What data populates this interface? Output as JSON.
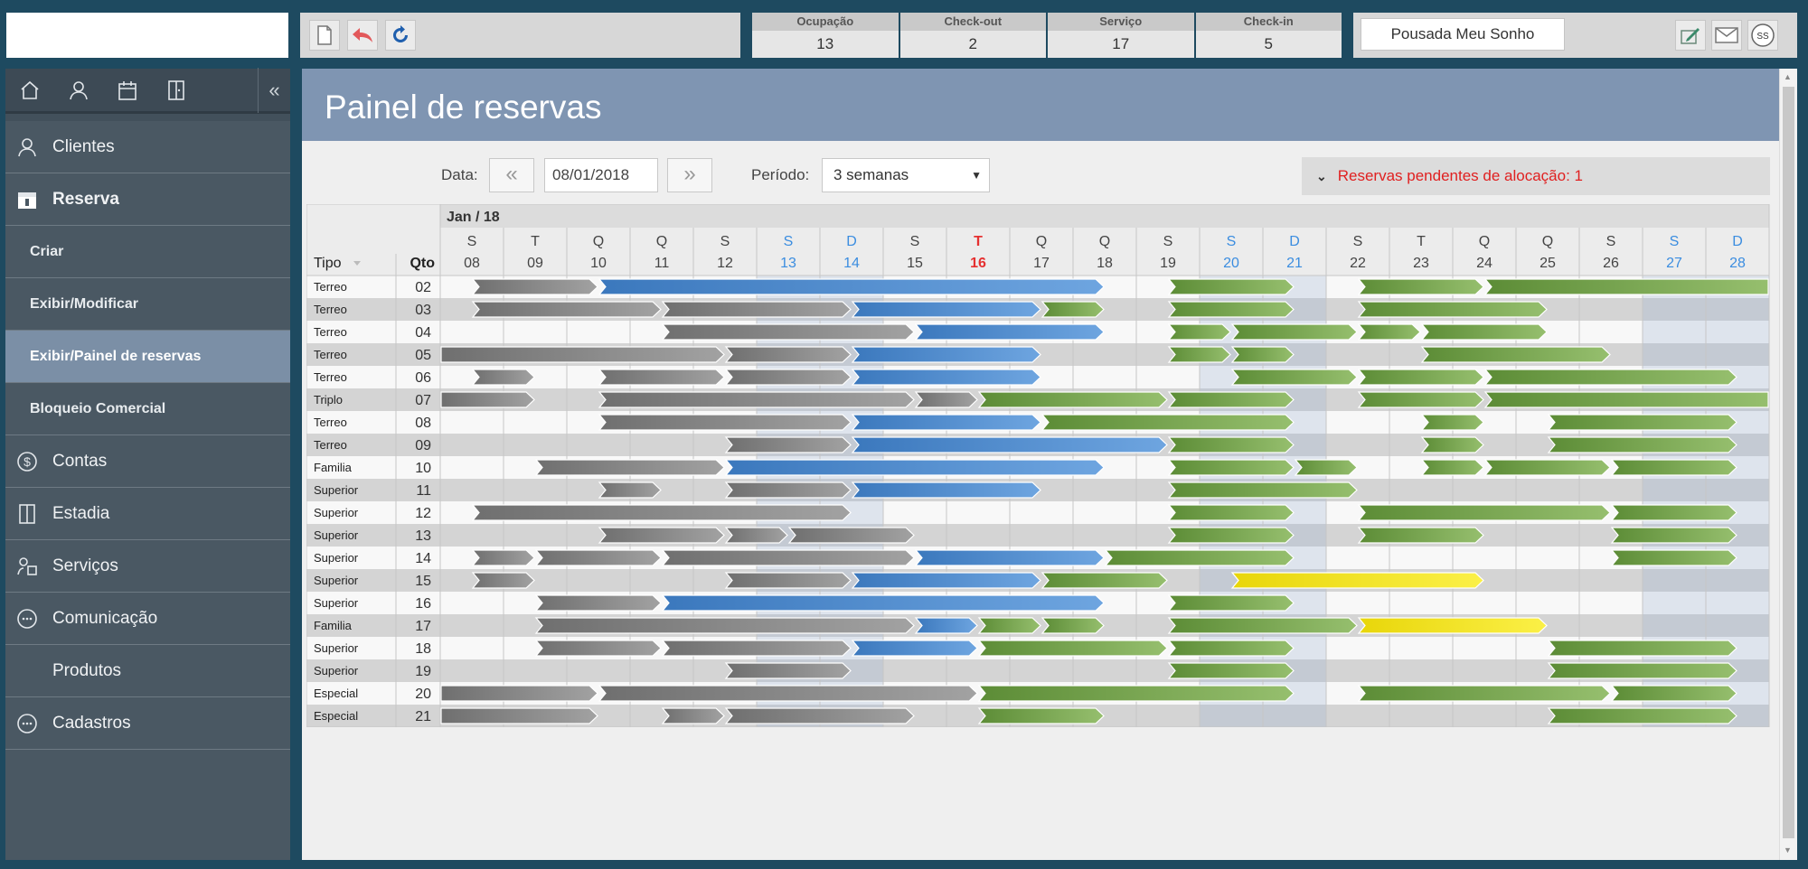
{
  "toolbar": {
    "icons": [
      "document-icon",
      "undo-icon",
      "refresh-icon"
    ]
  },
  "stats": [
    {
      "label": "Ocupação",
      "value": "13"
    },
    {
      "label": "Check-out",
      "value": "2"
    },
    {
      "label": "Serviço",
      "value": "17"
    },
    {
      "label": "Check-in",
      "value": "5"
    }
  ],
  "hotel_name": "Pousada Meu Sonho",
  "user_initials": "SS",
  "sidebar": {
    "menu": [
      {
        "label": "Clientes",
        "icon": "user-icon"
      },
      {
        "label": "Reserva",
        "icon": "calendar-icon"
      },
      {
        "label": "Criar"
      },
      {
        "label": "Exibir/Modificar"
      },
      {
        "label": "Exibir/Painel de reservas"
      },
      {
        "label": "Bloqueio Comercial"
      },
      {
        "label": "Contas",
        "icon": "dollar-icon"
      },
      {
        "label": "Estadia",
        "icon": "door-icon"
      },
      {
        "label": "Serviços",
        "icon": "services-icon"
      },
      {
        "label": "Comunicação",
        "icon": "chat-icon"
      },
      {
        "label": "Produtos"
      },
      {
        "label": "Cadastros",
        "icon": "chat-icon"
      }
    ]
  },
  "page": {
    "title": "Painel de reservas",
    "date_label": "Data:",
    "date_value": "08/01/2018",
    "period_label": "Período:",
    "period_value": "3 semanas",
    "pending_text": "Reservas pendentes de alocação: 1",
    "prev_label": "«",
    "next_label": "»"
  },
  "grid": {
    "month": "Jan / 18",
    "tipo_header": "Tipo",
    "qto_header": "Qto",
    "days": [
      {
        "l": "S",
        "n": "08",
        "k": "n"
      },
      {
        "l": "T",
        "n": "09",
        "k": "n"
      },
      {
        "l": "Q",
        "n": "10",
        "k": "n"
      },
      {
        "l": "Q",
        "n": "11",
        "k": "n"
      },
      {
        "l": "S",
        "n": "12",
        "k": "n"
      },
      {
        "l": "S",
        "n": "13",
        "k": "w"
      },
      {
        "l": "D",
        "n": "14",
        "k": "w"
      },
      {
        "l": "S",
        "n": "15",
        "k": "n"
      },
      {
        "l": "T",
        "n": "16",
        "k": "t"
      },
      {
        "l": "Q",
        "n": "17",
        "k": "n"
      },
      {
        "l": "Q",
        "n": "18",
        "k": "n"
      },
      {
        "l": "S",
        "n": "19",
        "k": "n"
      },
      {
        "l": "S",
        "n": "20",
        "k": "w"
      },
      {
        "l": "D",
        "n": "21",
        "k": "w"
      },
      {
        "l": "S",
        "n": "22",
        "k": "n"
      },
      {
        "l": "T",
        "n": "23",
        "k": "n"
      },
      {
        "l": "Q",
        "n": "24",
        "k": "n"
      },
      {
        "l": "Q",
        "n": "25",
        "k": "n"
      },
      {
        "l": "S",
        "n": "26",
        "k": "n"
      },
      {
        "l": "S",
        "n": "27",
        "k": "w"
      },
      {
        "l": "D",
        "n": "28",
        "k": "w"
      }
    ],
    "colors": {
      "past": "#8a8a8a",
      "current": "#4a86c5",
      "future": "#6f9a47",
      "pending": "#f2e418",
      "weekend": "#3b8de0",
      "today": "#e53030"
    },
    "rows": [
      {
        "tipo": "Terreo",
        "qto": "02",
        "bars": [
          [
            "past",
            0.5,
            2.5
          ],
          [
            "current",
            2.5,
            10.5
          ],
          [
            "future",
            11.5,
            13.5
          ],
          [
            "future",
            14.5,
            16.5
          ],
          [
            "future",
            16.5,
            21
          ]
        ]
      },
      {
        "tipo": "Terreo",
        "qto": "03",
        "bars": [
          [
            "past",
            0.5,
            3.5
          ],
          [
            "past",
            3.5,
            6.5
          ],
          [
            "current",
            6.5,
            9.5
          ],
          [
            "future",
            9.5,
            10.5
          ],
          [
            "future",
            11.5,
            13.5
          ],
          [
            "future",
            14.5,
            17.5
          ]
        ]
      },
      {
        "tipo": "Terreo",
        "qto": "04",
        "bars": [
          [
            "past",
            3.5,
            7.5
          ],
          [
            "current",
            7.5,
            10.5
          ],
          [
            "future",
            11.5,
            12.5
          ],
          [
            "future",
            12.5,
            14.5
          ],
          [
            "future",
            14.5,
            15.5
          ],
          [
            "future",
            15.5,
            17.5
          ]
        ]
      },
      {
        "tipo": "Terreo",
        "qto": "05",
        "bars": [
          [
            "past",
            0,
            4.5
          ],
          [
            "past",
            4.5,
            6.5
          ],
          [
            "current",
            6.5,
            9.5
          ],
          [
            "future",
            11.5,
            12.5
          ],
          [
            "future",
            12.5,
            13.5
          ],
          [
            "future",
            15.5,
            18.5
          ]
        ]
      },
      {
        "tipo": "Terreo",
        "qto": "06",
        "bars": [
          [
            "past",
            0.5,
            1.5
          ],
          [
            "past",
            2.5,
            4.5
          ],
          [
            "past",
            4.5,
            6.5
          ],
          [
            "current",
            6.5,
            9.5
          ],
          [
            "future",
            12.5,
            14.5
          ],
          [
            "future",
            14.5,
            16.5
          ],
          [
            "future",
            16.5,
            20.5
          ]
        ]
      },
      {
        "tipo": "Triplo",
        "qto": "07",
        "bars": [
          [
            "past",
            0,
            1.5
          ],
          [
            "past",
            2.5,
            7.5
          ],
          [
            "past",
            7.5,
            8.5
          ],
          [
            "future",
            8.5,
            11.5
          ],
          [
            "future",
            11.5,
            13.5
          ],
          [
            "future",
            14.5,
            16.5
          ],
          [
            "future",
            16.5,
            21
          ]
        ]
      },
      {
        "tipo": "Terreo",
        "qto": "08",
        "bars": [
          [
            "past",
            2.5,
            6.5
          ],
          [
            "current",
            6.5,
            9.5
          ],
          [
            "future",
            9.5,
            13.5
          ],
          [
            "future",
            15.5,
            16.5
          ],
          [
            "future",
            17.5,
            20.5
          ]
        ]
      },
      {
        "tipo": "Terreo",
        "qto": "09",
        "bars": [
          [
            "past",
            4.5,
            6.5
          ],
          [
            "current",
            6.5,
            11.5
          ],
          [
            "future",
            11.5,
            13.5
          ],
          [
            "future",
            15.5,
            16.5
          ],
          [
            "future",
            17.5,
            20.5
          ]
        ]
      },
      {
        "tipo": "Familia",
        "qto": "10",
        "bars": [
          [
            "past",
            1.5,
            4.5
          ],
          [
            "current",
            4.5,
            10.5
          ],
          [
            "future",
            11.5,
            13.5
          ],
          [
            "future",
            13.5,
            14.5
          ],
          [
            "future",
            15.5,
            16.5
          ],
          [
            "future",
            16.5,
            18.5
          ],
          [
            "future",
            18.5,
            20.5
          ]
        ]
      },
      {
        "tipo": "Superior",
        "qto": "11",
        "bars": [
          [
            "past",
            2.5,
            3.5
          ],
          [
            "past",
            4.5,
            6.5
          ],
          [
            "current",
            6.5,
            9.5
          ],
          [
            "future",
            11.5,
            14.5
          ]
        ]
      },
      {
        "tipo": "Superior",
        "qto": "12",
        "bars": [
          [
            "past",
            0.5,
            6.5
          ],
          [
            "future",
            11.5,
            13.5
          ],
          [
            "future",
            14.5,
            18.5
          ],
          [
            "future",
            18.5,
            20.5
          ]
        ]
      },
      {
        "tipo": "Superior",
        "qto": "13",
        "bars": [
          [
            "past",
            2.5,
            4.5
          ],
          [
            "past",
            4.5,
            5.5
          ],
          [
            "past",
            5.5,
            7.5
          ],
          [
            "future",
            11.5,
            13.5
          ],
          [
            "future",
            14.5,
            16.5
          ],
          [
            "future",
            18.5,
            20.5
          ]
        ]
      },
      {
        "tipo": "Superior",
        "qto": "14",
        "bars": [
          [
            "past",
            0.5,
            1.5
          ],
          [
            "past",
            1.5,
            3.5
          ],
          [
            "past",
            3.5,
            7.5
          ],
          [
            "current",
            7.5,
            10.5
          ],
          [
            "future",
            10.5,
            13.5
          ],
          [
            "future",
            18.5,
            20.5
          ]
        ]
      },
      {
        "tipo": "Superior",
        "qto": "15",
        "bars": [
          [
            "past",
            0.5,
            1.5
          ],
          [
            "past",
            4.5,
            6.5
          ],
          [
            "current",
            6.5,
            9.5
          ],
          [
            "future",
            9.5,
            11.5
          ],
          [
            "pending",
            12.5,
            16.5
          ]
        ]
      },
      {
        "tipo": "Superior",
        "qto": "16",
        "bars": [
          [
            "past",
            1.5,
            3.5
          ],
          [
            "current",
            3.5,
            10.5
          ],
          [
            "future",
            11.5,
            13.5
          ]
        ]
      },
      {
        "tipo": "Familia",
        "qto": "17",
        "bars": [
          [
            "past",
            1.5,
            7.5
          ],
          [
            "current",
            7.5,
            8.5
          ],
          [
            "future",
            8.5,
            9.5
          ],
          [
            "future",
            9.5,
            10.5
          ],
          [
            "future",
            11.5,
            14.5
          ],
          [
            "pending",
            14.5,
            17.5
          ]
        ]
      },
      {
        "tipo": "Superior",
        "qto": "18",
        "bars": [
          [
            "past",
            1.5,
            3.5
          ],
          [
            "past",
            3.5,
            6.5
          ],
          [
            "current",
            6.5,
            8.5
          ],
          [
            "future",
            8.5,
            11.5
          ],
          [
            "future",
            11.5,
            13.5
          ],
          [
            "future",
            17.5,
            20.5
          ]
        ]
      },
      {
        "tipo": "Superior",
        "qto": "19",
        "bars": [
          [
            "past",
            4.5,
            6.5
          ],
          [
            "future",
            11.5,
            13.5
          ],
          [
            "future",
            17.5,
            20.5
          ]
        ]
      },
      {
        "tipo": "Especial",
        "qto": "20",
        "bars": [
          [
            "past",
            0,
            2.5
          ],
          [
            "past",
            2.5,
            8.5
          ],
          [
            "future",
            8.5,
            13.5
          ],
          [
            "future",
            14.5,
            18.5
          ],
          [
            "future",
            18.5,
            20.5
          ]
        ]
      },
      {
        "tipo": "Especial",
        "qto": "21",
        "bars": [
          [
            "past",
            0,
            2.5
          ],
          [
            "past",
            3.5,
            4.5
          ],
          [
            "past",
            4.5,
            7.5
          ],
          [
            "future",
            8.5,
            10.5
          ],
          [
            "future",
            17.5,
            20.5
          ]
        ]
      }
    ]
  }
}
